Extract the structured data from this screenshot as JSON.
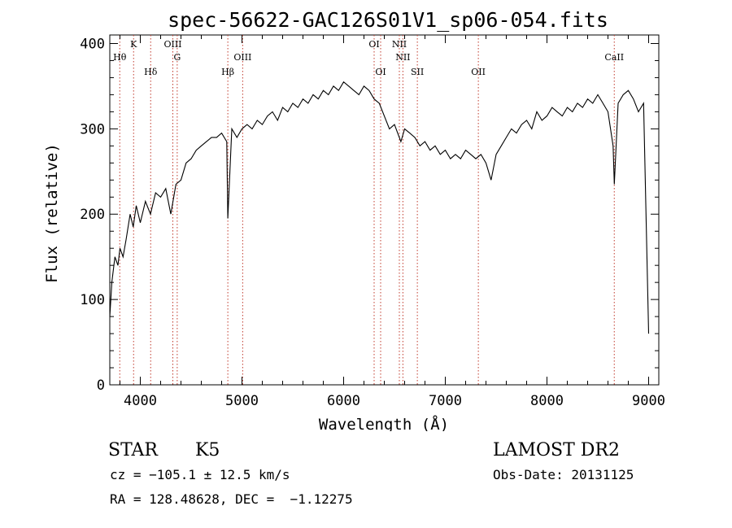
{
  "chart_data": {
    "type": "line",
    "title": "spec-56622-GAC126S01V1_sp06-054.fits",
    "xlabel": "Wavelength (Å)",
    "ylabel": "Flux (relative)",
    "xlim": [
      3700,
      9100
    ],
    "ylim": [
      0,
      410
    ],
    "xticks": [
      4000,
      5000,
      6000,
      7000,
      8000,
      9000
    ],
    "yticks": [
      0,
      100,
      200,
      300,
      400
    ],
    "grid": false,
    "series": [
      {
        "x": [
          3700,
          3720,
          3750,
          3780,
          3800,
          3830,
          3860,
          3900,
          3930,
          3960,
          4000,
          4050,
          4100,
          4150,
          4200,
          4250,
          4300,
          4350,
          4400,
          4450,
          4500,
          4550,
          4600,
          4650,
          4700,
          4750,
          4800,
          4850,
          4861,
          4900,
          4950,
          5000,
          5050,
          5100,
          5150,
          5200,
          5250,
          5300,
          5350,
          5400,
          5450,
          5500,
          5550,
          5600,
          5650,
          5700,
          5750,
          5800,
          5850,
          5900,
          5950,
          6000,
          6050,
          6100,
          6150,
          6200,
          6250,
          6300,
          6350,
          6400,
          6450,
          6500,
          6563,
          6600,
          6650,
          6700,
          6750,
          6800,
          6850,
          6900,
          6950,
          7000,
          7050,
          7100,
          7150,
          7200,
          7250,
          7300,
          7350,
          7400,
          7450,
          7500,
          7550,
          7600,
          7650,
          7700,
          7750,
          7800,
          7850,
          7900,
          7950,
          8000,
          8050,
          8100,
          8150,
          8200,
          8250,
          8300,
          8350,
          8400,
          8450,
          8500,
          8550,
          8600,
          8650,
          8662,
          8700,
          8750,
          8800,
          8850,
          8900,
          8950,
          9000
        ],
        "y": [
          80,
          120,
          150,
          140,
          160,
          150,
          170,
          200,
          185,
          210,
          190,
          215,
          200,
          225,
          220,
          230,
          200,
          235,
          240,
          260,
          265,
          275,
          280,
          285,
          290,
          290,
          295,
          285,
          195,
          300,
          290,
          300,
          305,
          300,
          310,
          305,
          315,
          320,
          310,
          325,
          320,
          330,
          325,
          335,
          330,
          340,
          335,
          345,
          340,
          350,
          345,
          355,
          350,
          345,
          340,
          350,
          345,
          335,
          330,
          315,
          300,
          305,
          285,
          300,
          295,
          290,
          280,
          285,
          275,
          280,
          270,
          275,
          265,
          270,
          265,
          275,
          270,
          265,
          270,
          260,
          240,
          270,
          280,
          290,
          300,
          295,
          305,
          310,
          300,
          320,
          310,
          315,
          325,
          320,
          315,
          325,
          320,
          330,
          325,
          335,
          330,
          340,
          330,
          320,
          280,
          235,
          330,
          340,
          345,
          335,
          320,
          330,
          60
        ]
      }
    ],
    "lines": [
      {
        "label": "Hθ",
        "x": 3798
      },
      {
        "label": "K",
        "x": 3934
      },
      {
        "label": "Hδ",
        "x": 4102
      },
      {
        "label": "OIII",
        "x": 4320
      },
      {
        "label": "G",
        "x": 4363
      },
      {
        "label": "Hβ",
        "x": 4861
      },
      {
        "label": "OIII",
        "x": 5007
      },
      {
        "label": "OI",
        "x": 6300
      },
      {
        "label": "OI",
        "x": 6364
      },
      {
        "label": "NII",
        "x": 6548
      },
      {
        "label": "NII",
        "x": 6583
      },
      {
        "label": "SII",
        "x": 6725
      },
      {
        "label": "OII",
        "x": 7325
      },
      {
        "label": "CaII",
        "x": 8662
      }
    ]
  },
  "info": {
    "object_class": "STAR",
    "subclass": "K5",
    "survey": "LAMOST DR2",
    "cz": "cz = −105.1 ± 12.5 km/s",
    "obs_date": "Obs-Date: 20131125",
    "coords": "RA = 128.48628, DEC =  −1.12275"
  }
}
